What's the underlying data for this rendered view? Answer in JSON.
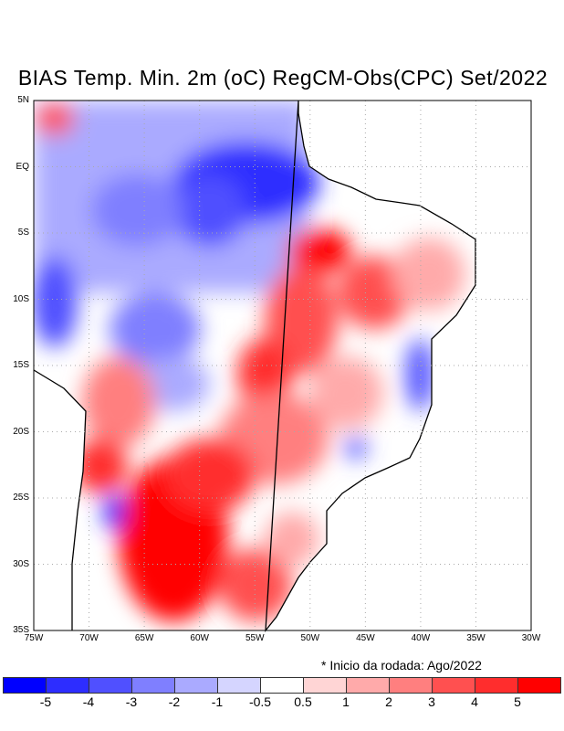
{
  "title": "BIAS Temp. Min. 2m (oC) RegCM-Obs(CPC) Set/2022",
  "note": "* Inicio da rodada: Ago/2022",
  "lat_labels": [
    "5N",
    "EQ",
    "5S",
    "10S",
    "15S",
    "20S",
    "25S",
    "30S",
    "35S"
  ],
  "lon_labels": [
    "75W",
    "70W",
    "65W",
    "60W",
    "55W",
    "50W",
    "45W",
    "40W",
    "35W",
    "30W"
  ],
  "colorbar": {
    "colors": [
      "#0000ff",
      "#2d2dff",
      "#5050ff",
      "#7f7fff",
      "#aaaaff",
      "#d5d5ff",
      "#ffffff",
      "#ffd5d5",
      "#ffaaaa",
      "#ff7f7f",
      "#ff5050",
      "#ff2d2d",
      "#ff0000"
    ],
    "labels": [
      "-5",
      "-4",
      "-3",
      "-2",
      "-1",
      "-0.5",
      "0.5",
      "1",
      "2",
      "3",
      "4",
      "5"
    ]
  }
}
